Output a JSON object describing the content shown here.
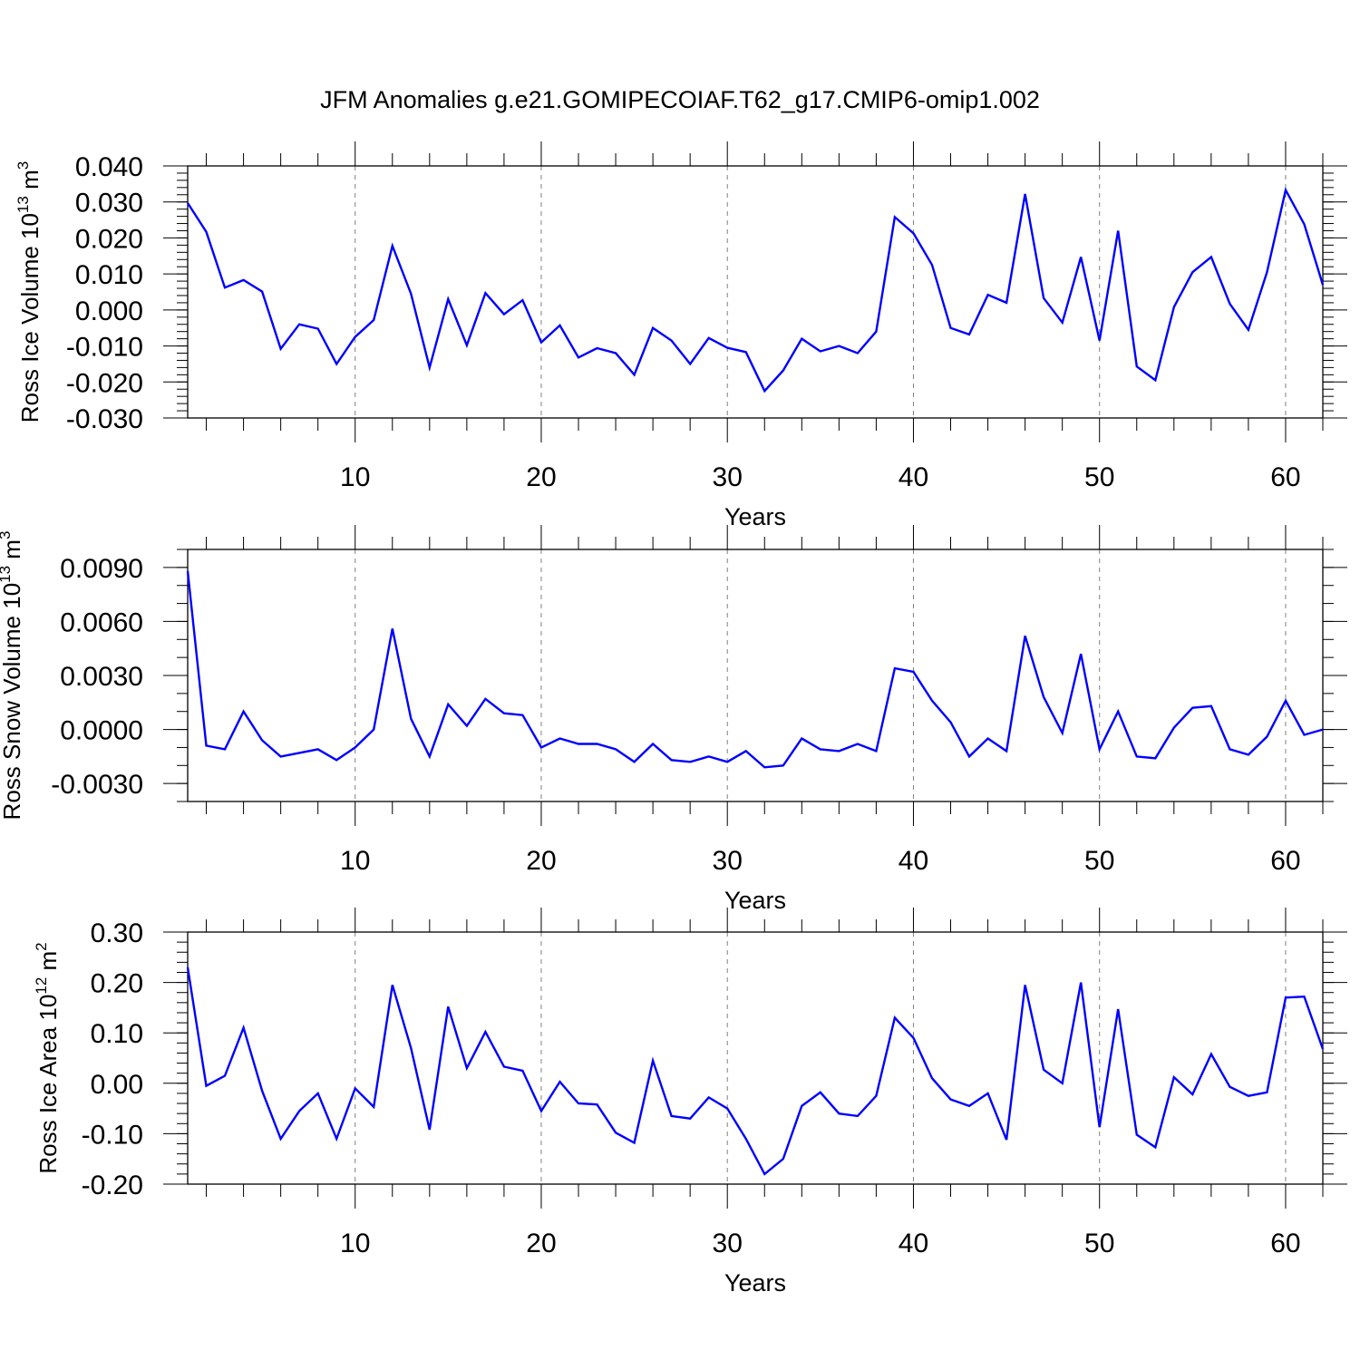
{
  "title": "JFM Anomalies g.e21.GOMIPECOIAF.T62_g17.CMIP6-omip1.002",
  "colors": {
    "line": "#0000ff",
    "axis": "#000000",
    "grid": "#808080"
  },
  "chart_data": [
    {
      "type": "line",
      "title": "JFM Anomalies g.e21.GOMIPECOIAF.T62_g17.CMIP6-omip1.002",
      "ylabel_main": "Ross Ice Volume 10",
      "ylabel_sup": "13",
      "ylabel_unit": " m",
      "ylabel_unit_sup": "3",
      "xlabel": "Years",
      "xlim": [
        1,
        62
      ],
      "ylim": [
        -0.03,
        0.04
      ],
      "yticks": [
        -0.03,
        -0.02,
        -0.01,
        0.0,
        0.01,
        0.02,
        0.03,
        0.04
      ],
      "yticklabels": [
        "-0.030",
        "-0.020",
        "-0.010",
        "0.000",
        "0.010",
        "0.020",
        "0.030",
        "0.040"
      ],
      "yminor": 0.002,
      "xticks": [
        10,
        20,
        30,
        40,
        50,
        60
      ],
      "xticklabels": [
        "10",
        "20",
        "30",
        "40",
        "50",
        "60"
      ],
      "x_start": 1,
      "values": [
        0.0297,
        0.0217,
        0.0062,
        0.0083,
        0.0051,
        -0.0108,
        -0.004,
        -0.0052,
        -0.015,
        -0.0075,
        -0.0028,
        0.0178,
        0.0045,
        -0.016,
        0.003,
        -0.0098,
        0.0047,
        -0.0012,
        0.0027,
        -0.009,
        -0.0043,
        -0.0132,
        -0.0106,
        -0.012,
        -0.018,
        -0.005,
        -0.0085,
        -0.015,
        -0.0078,
        -0.0105,
        -0.0117,
        -0.0225,
        -0.0168,
        -0.008,
        -0.0115,
        -0.01,
        -0.012,
        -0.006,
        0.0258,
        0.0213,
        0.0125,
        -0.005,
        -0.0068,
        0.0042,
        0.002,
        0.0322,
        0.0033,
        -0.0035,
        0.0147,
        -0.0085,
        0.022,
        -0.0157,
        -0.0195,
        0.0008,
        0.0105,
        0.0147,
        0.0017,
        -0.0055,
        0.0105,
        0.0333,
        0.0238,
        0.007
      ]
    },
    {
      "type": "line",
      "ylabel_main": "Ross Snow Volume 10",
      "ylabel_sup": "13",
      "ylabel_unit": " m",
      "ylabel_unit_sup": "3",
      "xlabel": "Years",
      "xlim": [
        1,
        62
      ],
      "ylim": [
        -0.004,
        0.01
      ],
      "yticks": [
        -0.003,
        0.0,
        0.003,
        0.006,
        0.009
      ],
      "yticklabels": [
        "-0.0030",
        "0.0000",
        "0.0030",
        "0.0060",
        "0.0090"
      ],
      "yminor": 0.001,
      "xticks": [
        10,
        20,
        30,
        40,
        50,
        60
      ],
      "xticklabels": [
        "10",
        "20",
        "30",
        "40",
        "50",
        "60"
      ],
      "x_start": 1,
      "values": [
        0.0088,
        -0.0009,
        -0.0011,
        0.001,
        -0.0006,
        -0.0015,
        -0.0013,
        -0.0011,
        -0.0017,
        -0.001,
        0.0,
        0.0056,
        0.0006,
        -0.0015,
        0.0014,
        0.0002,
        0.0017,
        0.0009,
        0.0008,
        -0.001,
        -0.0005,
        -0.0008,
        -0.0008,
        -0.0011,
        -0.0018,
        -0.0008,
        -0.0017,
        -0.0018,
        -0.0015,
        -0.0018,
        -0.0012,
        -0.0021,
        -0.002,
        -0.0005,
        -0.0011,
        -0.0012,
        -0.0008,
        -0.0012,
        0.0034,
        0.0032,
        0.0016,
        0.0004,
        -0.0015,
        -0.0005,
        -0.0012,
        0.0052,
        0.0018,
        -0.0002,
        0.0042,
        -0.0011,
        0.001,
        -0.0015,
        -0.0016,
        0.0001,
        0.0012,
        0.0013,
        -0.0011,
        -0.0014,
        -0.0004,
        0.0016,
        -0.0003,
        0.0
      ]
    },
    {
      "type": "line",
      "ylabel_main": "Ross Ice Area 10",
      "ylabel_sup": "12",
      "ylabel_unit": " m",
      "ylabel_unit_sup": "2",
      "xlabel": "Years",
      "xlim": [
        1,
        62
      ],
      "ylim": [
        -0.2,
        0.3
      ],
      "yticks": [
        -0.2,
        -0.1,
        0.0,
        0.1,
        0.2,
        0.3
      ],
      "yticklabels": [
        "-0.20",
        "-0.10",
        "0.00",
        "0.10",
        "0.20",
        "0.30"
      ],
      "yminor": 0.02,
      "xticks": [
        10,
        20,
        30,
        40,
        50,
        60
      ],
      "xticklabels": [
        "10",
        "20",
        "30",
        "40",
        "50",
        "60"
      ],
      "x_start": 1,
      "values": [
        0.23,
        -0.005,
        0.015,
        0.11,
        -0.015,
        -0.11,
        -0.055,
        -0.02,
        -0.11,
        -0.01,
        -0.047,
        0.195,
        0.07,
        -0.092,
        0.152,
        0.03,
        0.102,
        0.033,
        0.025,
        -0.055,
        0.003,
        -0.04,
        -0.042,
        -0.098,
        -0.118,
        0.045,
        -0.065,
        -0.07,
        -0.028,
        -0.05,
        -0.11,
        -0.18,
        -0.15,
        -0.045,
        -0.018,
        -0.06,
        -0.065,
        -0.025,
        0.13,
        0.09,
        0.01,
        -0.032,
        -0.045,
        -0.02,
        -0.112,
        0.195,
        0.027,
        0.0,
        0.2,
        -0.087,
        0.147,
        -0.102,
        -0.127,
        0.012,
        -0.022,
        0.058,
        -0.007,
        -0.025,
        -0.018,
        0.17,
        0.172,
        0.068
      ]
    }
  ]
}
